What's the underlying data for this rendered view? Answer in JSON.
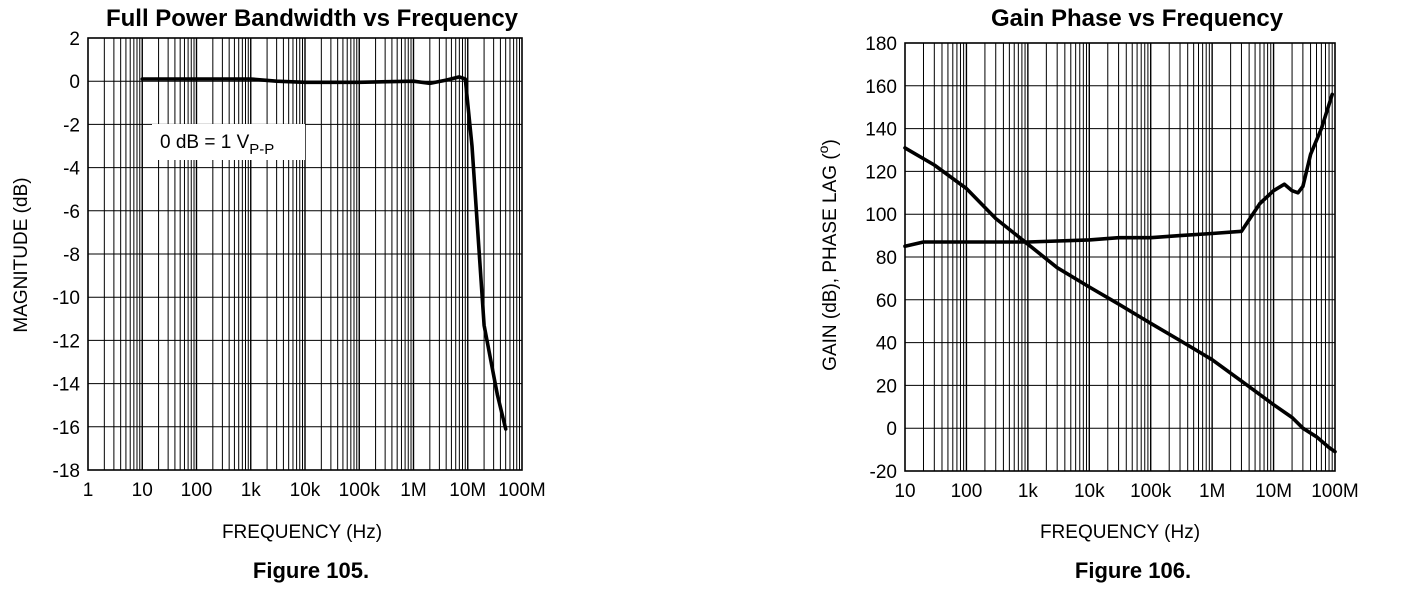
{
  "chart_data": [
    {
      "type": "line",
      "title": "Full Power Bandwidth vs Frequency",
      "xlabel": "FREQUENCY (Hz)",
      "ylabel": "MAGNITUDE (dB)",
      "x_scale": "log",
      "xlim": [
        1,
        100000000
      ],
      "ylim": [
        -18,
        2
      ],
      "grid": true,
      "x_tick_labels": [
        "1",
        "10",
        "100",
        "1k",
        "10k",
        "100k",
        "1M",
        "10M",
        "100M"
      ],
      "y_tick_labels": [
        "2",
        "0",
        "-2",
        "-4",
        "-6",
        "-8",
        "-10",
        "-12",
        "-14",
        "-16",
        "-18"
      ],
      "annotation": {
        "text": "0 dB = 1 V",
        "subscript": "P-P"
      },
      "caption": "Figure 105.",
      "series": [
        {
          "x": [
            10,
            30,
            100,
            1000,
            3000,
            10000,
            100000,
            1000000,
            2000000,
            4000000,
            7000000,
            9000000,
            12000000,
            20000000,
            35000000,
            50000000
          ],
          "y": [
            0.1,
            0.1,
            0.1,
            0.1,
            0.0,
            -0.05,
            -0.05,
            0.0,
            -0.1,
            0.05,
            0.2,
            0.1,
            -3,
            -11.3,
            -14.5,
            -16.1
          ]
        }
      ]
    },
    {
      "type": "line",
      "title": "Gain Phase vs Frequency",
      "xlabel": "FREQUENCY (Hz)",
      "ylabel": "GAIN (dB), PHASE LAG (",
      "ylabel_degree": "o",
      "ylabel_close": ")",
      "x_scale": "log",
      "xlim": [
        10,
        100000000
      ],
      "ylim": [
        -20,
        180
      ],
      "grid": true,
      "x_tick_labels": [
        "10",
        "100",
        "1k",
        "10k",
        "100k",
        "1M",
        "10M",
        "100M"
      ],
      "y_tick_labels": [
        "180",
        "160",
        "140",
        "120",
        "100",
        "80",
        "60",
        "40",
        "20",
        "0",
        "-20"
      ],
      "caption": "Figure 106.",
      "series": [
        {
          "x": [
            10,
            30,
            100,
            300,
            1000,
            3000,
            10000,
            30000,
            100000,
            300000,
            1000000,
            3000000,
            10000000,
            20000000,
            30000000,
            50000000,
            80000000,
            100000000
          ],
          "y": [
            131,
            123,
            112,
            98,
            86,
            75,
            66,
            58,
            49,
            41,
            32,
            22,
            11,
            5,
            0,
            -4,
            -9,
            -11
          ]
        },
        {
          "x": [
            10,
            20,
            100,
            1000,
            10000,
            30000,
            100000,
            300000,
            1000000,
            3000000,
            6000000,
            10000000,
            15000000,
            20000000,
            25000000,
            30000000,
            40000000,
            60000000,
            90000000
          ],
          "y": [
            85,
            87,
            87,
            87,
            88,
            89,
            89,
            90,
            91,
            92,
            105,
            111,
            114,
            111,
            110,
            113,
            128,
            140,
            156
          ]
        }
      ]
    }
  ]
}
